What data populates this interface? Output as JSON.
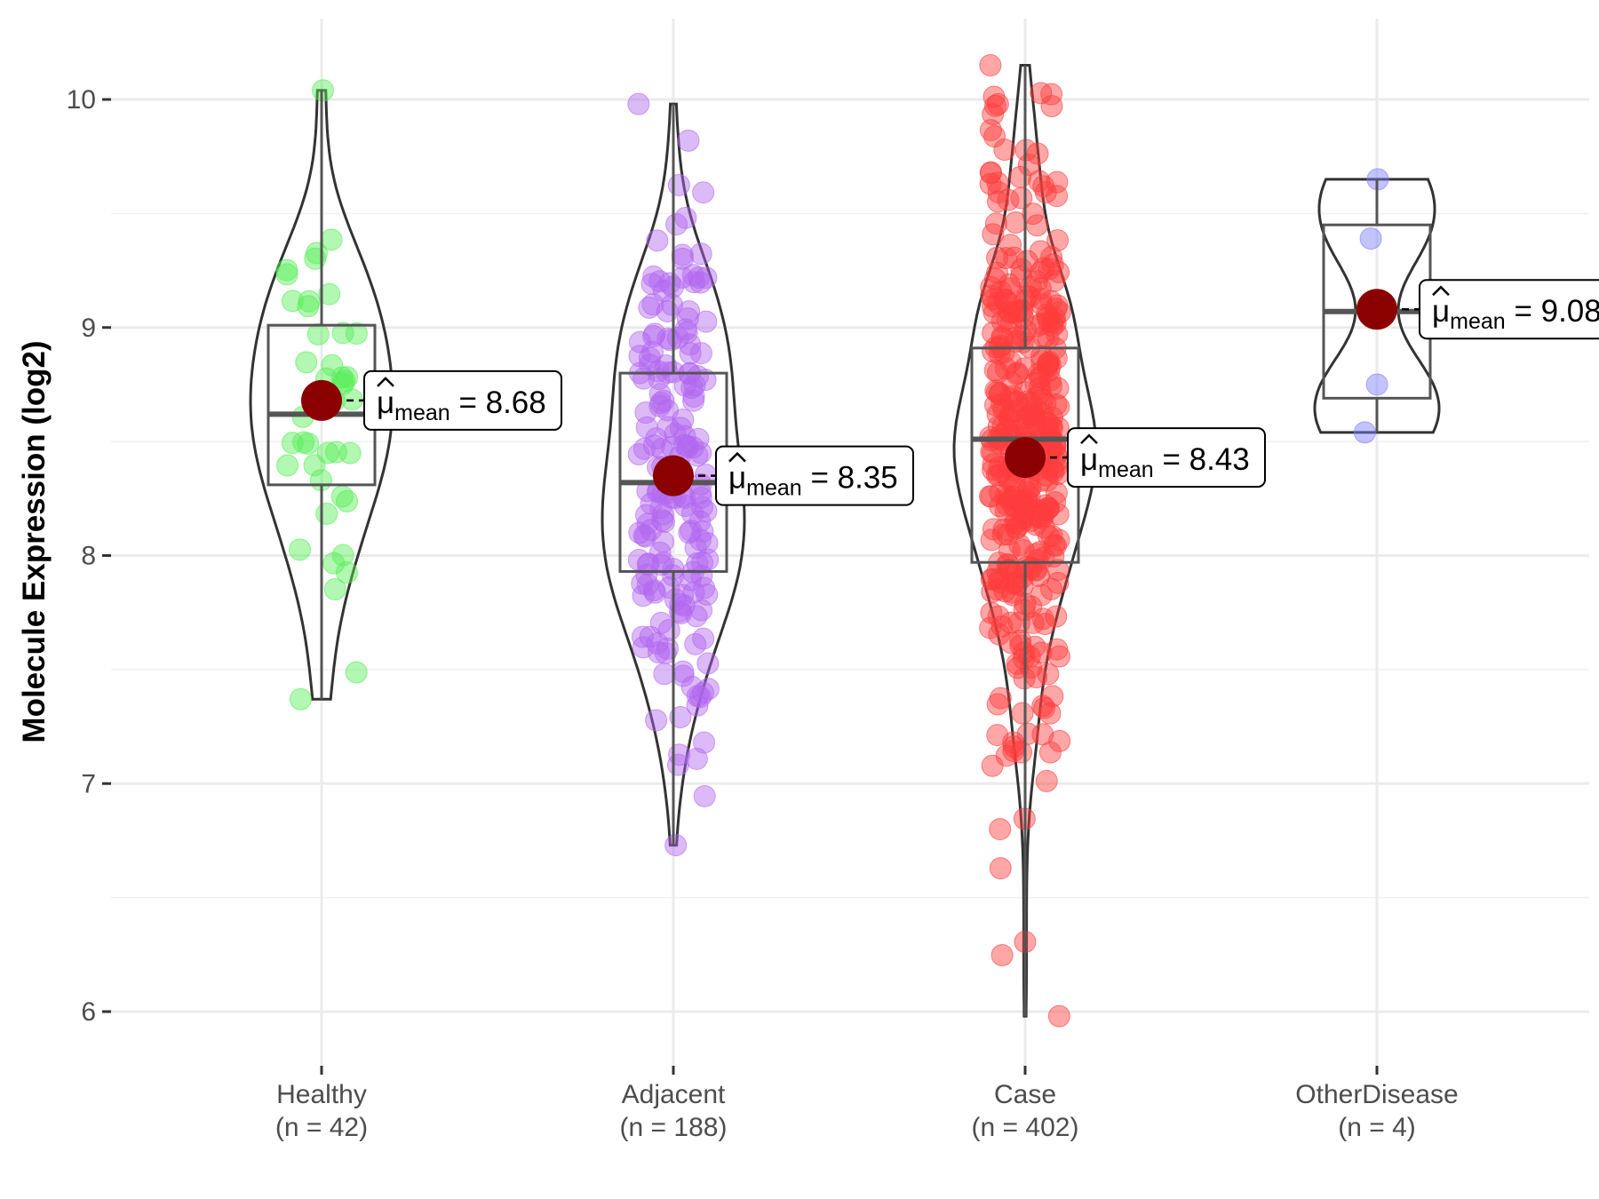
{
  "chart_data": {
    "type": "violin",
    "title": "",
    "xlabel": "",
    "ylabel": "Molecule Expression (log2)",
    "ylim": [
      5.8,
      10.35
    ],
    "yticks": [
      6,
      7,
      8,
      9,
      10
    ],
    "grid": true,
    "categories": [
      {
        "name": "Healthy",
        "n_label": "(n = 42)",
        "n": 42,
        "color": "#55ee55",
        "min": 7.37,
        "q1": 8.31,
        "median": 8.62,
        "q3": 9.01,
        "max": 10.04,
        "mean": 8.68,
        "sd": 0.55,
        "mean_label": "8.68"
      },
      {
        "name": "Adjacent",
        "n_label": "(n = 188)",
        "n": 188,
        "color": "#b266f0",
        "min": 6.73,
        "q1": 7.93,
        "median": 8.32,
        "q3": 8.8,
        "max": 9.98,
        "mean": 8.35,
        "sd": 0.6,
        "mean_label": "8.35"
      },
      {
        "name": "Case",
        "n_label": "(n = 402)",
        "n": 402,
        "color": "#ff3b3b",
        "min": 5.98,
        "q1": 7.97,
        "median": 8.51,
        "q3": 8.91,
        "max": 10.15,
        "mean": 8.43,
        "sd": 0.65,
        "mean_label": "8.43"
      },
      {
        "name": "OtherDisease",
        "n_label": "(n = 4)",
        "n": 4,
        "color": "#7b7bff",
        "min": 8.54,
        "q1": 8.69,
        "median": 9.07,
        "q3": 9.45,
        "max": 9.65,
        "mean": 9.08,
        "mean_label": "9.08",
        "points": [
          9.65,
          9.39,
          8.75,
          8.54
        ]
      }
    ],
    "mean_symbol": "μ",
    "mean_subscript": "mean",
    "mean_point_color": "#8b0000"
  }
}
